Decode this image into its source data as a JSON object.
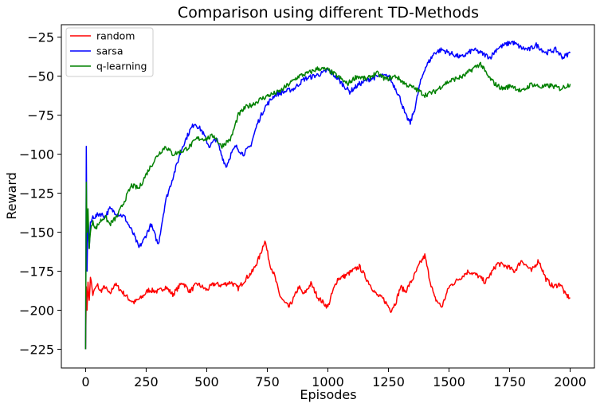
{
  "chart_data": {
    "type": "line",
    "title": "Comparison using different TD-Methods",
    "xlabel": "Episodes",
    "ylabel": "Reward",
    "xlim": [
      -100,
      2100
    ],
    "ylim": [
      -237,
      -17
    ],
    "xticks": [
      0,
      250,
      500,
      750,
      1000,
      1250,
      1500,
      1750,
      2000
    ],
    "yticks": [
      -225,
      -200,
      -175,
      -150,
      -125,
      -100,
      -75,
      -50,
      -25
    ],
    "xtick_labels": [
      "0",
      "250",
      "500",
      "750",
      "1000",
      "1250",
      "1500",
      "1750",
      "2000"
    ],
    "ytick_labels": [
      "−225",
      "−200",
      "−175",
      "−150",
      "−125",
      "−100",
      "−75",
      "−50",
      "−25"
    ],
    "grid": false,
    "legend_position": "top-left",
    "series": [
      {
        "name": "random",
        "color": "#ff0000",
        "x": [
          0,
          3,
          6,
          10,
          15,
          20,
          30,
          40,
          50,
          60,
          80,
          100,
          120,
          150,
          180,
          200,
          230,
          260,
          300,
          330,
          360,
          400,
          430,
          460,
          500,
          530,
          560,
          600,
          630,
          660,
          690,
          720,
          740,
          760,
          780,
          800,
          820,
          840,
          860,
          880,
          900,
          930,
          960,
          1000,
          1020,
          1040,
          1070,
          1100,
          1130,
          1160,
          1200,
          1230,
          1260,
          1280,
          1300,
          1320,
          1350,
          1380,
          1400,
          1420,
          1440,
          1470,
          1500,
          1540,
          1580,
          1620,
          1650,
          1700,
          1740,
          1770,
          1800,
          1840,
          1870,
          1900,
          1930,
          1960,
          1980,
          2000
        ],
        "y": [
          -225,
          -185,
          -200,
          -182,
          -195,
          -178,
          -190,
          -186,
          -184,
          -188,
          -185,
          -190,
          -183,
          -188,
          -193,
          -195,
          -192,
          -187,
          -188,
          -185,
          -190,
          -182,
          -188,
          -183,
          -187,
          -183,
          -184,
          -182,
          -186,
          -180,
          -175,
          -165,
          -155,
          -170,
          -178,
          -190,
          -195,
          -198,
          -192,
          -185,
          -190,
          -183,
          -192,
          -198,
          -188,
          -180,
          -178,
          -175,
          -172,
          -180,
          -190,
          -193,
          -200,
          -195,
          -185,
          -188,
          -180,
          -170,
          -165,
          -180,
          -192,
          -198,
          -185,
          -180,
          -175,
          -178,
          -182,
          -170,
          -172,
          -175,
          -168,
          -175,
          -168,
          -180,
          -185,
          -183,
          -190,
          -192
        ]
      },
      {
        "name": "sarsa",
        "color": "#0000ff",
        "x": [
          0,
          3,
          6,
          10,
          15,
          20,
          30,
          40,
          60,
          80,
          100,
          130,
          160,
          200,
          220,
          240,
          270,
          300,
          330,
          360,
          400,
          430,
          450,
          480,
          510,
          540,
          560,
          580,
          600,
          620,
          650,
          680,
          710,
          740,
          780,
          820,
          860,
          900,
          940,
          980,
          1000,
          1030,
          1060,
          1090,
          1130,
          1170,
          1210,
          1250,
          1280,
          1300,
          1320,
          1340,
          1360,
          1380,
          1400,
          1420,
          1440,
          1470,
          1500,
          1550,
          1600,
          1630,
          1670,
          1700,
          1730,
          1760,
          1780,
          1800,
          1830,
          1860,
          1900,
          1940,
          1970,
          2000
        ],
        "y": [
          -225,
          -95,
          -175,
          -140,
          -160,
          -145,
          -140,
          -140,
          -138,
          -140,
          -135,
          -138,
          -140,
          -152,
          -160,
          -155,
          -145,
          -158,
          -130,
          -115,
          -95,
          -85,
          -80,
          -85,
          -95,
          -90,
          -100,
          -108,
          -100,
          -95,
          -100,
          -95,
          -80,
          -70,
          -62,
          -60,
          -58,
          -52,
          -50,
          -48,
          -46,
          -50,
          -55,
          -60,
          -55,
          -52,
          -50,
          -50,
          -58,
          -65,
          -75,
          -80,
          -70,
          -55,
          -45,
          -40,
          -35,
          -33,
          -35,
          -38,
          -33,
          -35,
          -38,
          -32,
          -30,
          -28,
          -30,
          -32,
          -33,
          -30,
          -35,
          -33,
          -38,
          -35
        ]
      },
      {
        "name": "q-learning",
        "color": "#008000",
        "x": [
          0,
          3,
          6,
          10,
          15,
          20,
          30,
          40,
          60,
          80,
          100,
          130,
          160,
          190,
          220,
          260,
          300,
          330,
          360,
          400,
          430,
          460,
          500,
          530,
          560,
          600,
          630,
          660,
          690,
          720,
          760,
          800,
          840,
          880,
          920,
          960,
          1000,
          1040,
          1080,
          1120,
          1160,
          1200,
          1240,
          1280,
          1320,
          1360,
          1400,
          1440,
          1480,
          1520,
          1560,
          1600,
          1630,
          1660,
          1690,
          1720,
          1760,
          1800,
          1840,
          1880,
          1920,
          1960,
          2000
        ],
        "y": [
          -225,
          -118,
          -150,
          -135,
          -160,
          -150,
          -142,
          -148,
          -143,
          -140,
          -145,
          -140,
          -130,
          -120,
          -122,
          -110,
          -100,
          -95,
          -100,
          -98,
          -95,
          -90,
          -90,
          -88,
          -95,
          -90,
          -75,
          -70,
          -68,
          -65,
          -62,
          -60,
          -55,
          -50,
          -48,
          -45,
          -46,
          -50,
          -55,
          -50,
          -52,
          -48,
          -52,
          -50,
          -55,
          -58,
          -62,
          -60,
          -55,
          -52,
          -50,
          -45,
          -42,
          -50,
          -55,
          -58,
          -56,
          -60,
          -55,
          -57,
          -56,
          -58,
          -55
        ]
      }
    ]
  }
}
